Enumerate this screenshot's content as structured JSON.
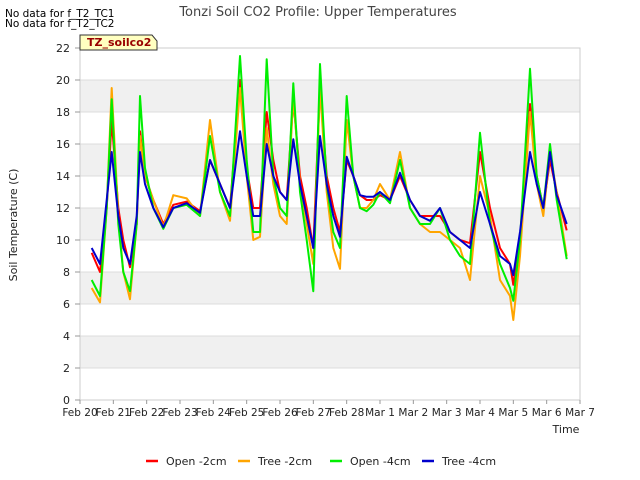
{
  "notices": [
    "No data for f_T2_TC1",
    "No data for f_T2_TC2"
  ],
  "chart_data": {
    "type": "line",
    "title": "Tonzi Soil CO2 Profile: Upper Temperatures",
    "xlabel": "Time",
    "ylabel": "Soil Temperature (C)",
    "site_label": "TZ_soilco2",
    "ylim": [
      0,
      22
    ],
    "xlim": [
      0,
      15
    ],
    "yticks": [
      0,
      2,
      4,
      6,
      8,
      10,
      12,
      14,
      16,
      18,
      20,
      22
    ],
    "xticks": [
      0,
      1,
      2,
      3,
      4,
      5,
      6,
      7,
      8,
      9,
      10,
      11,
      12,
      13,
      14,
      15
    ],
    "xtick_labels": [
      "Feb 20",
      "Feb 21",
      "Feb 22",
      "Feb 23",
      "Feb 24",
      "Feb 25",
      "Feb 26",
      "Feb 27",
      "Feb 28",
      "Mar 1",
      "Mar 2",
      "Mar 3",
      "Mar 4",
      "Mar 5",
      "Mar 6",
      "Mar 7"
    ],
    "grid": true,
    "legend_position": "bottom",
    "series": [
      {
        "name": "Open -2cm",
        "color": "#ff0000",
        "x": [
          0.35,
          0.6,
          0.8,
          0.95,
          1.15,
          1.3,
          1.5,
          1.7,
          1.8,
          1.95,
          2.2,
          2.5,
          2.8,
          3.2,
          3.6,
          3.9,
          4.2,
          4.5,
          4.8,
          5.0,
          5.2,
          5.4,
          5.6,
          5.8,
          6.0,
          6.2,
          6.4,
          6.6,
          6.8,
          7.0,
          7.2,
          7.4,
          7.6,
          7.8,
          8.0,
          8.2,
          8.4,
          8.6,
          8.8,
          9.0,
          9.3,
          9.6,
          9.9,
          10.2,
          10.5,
          10.8,
          11.1,
          11.4,
          11.7,
          12.0,
          12.3,
          12.6,
          12.9,
          13.0,
          13.2,
          13.5,
          13.7,
          13.9,
          14.1,
          14.3,
          14.6
        ],
        "y": [
          9.2,
          8.0,
          12.0,
          17.5,
          12.0,
          10.0,
          8.3,
          11.0,
          16.8,
          14.0,
          12.5,
          11.0,
          12.2,
          12.4,
          11.8,
          15.0,
          13.5,
          12.0,
          20.0,
          14.5,
          12.0,
          12.0,
          18.0,
          15.0,
          13.0,
          12.5,
          18.8,
          14.0,
          12.0,
          9.5,
          19.5,
          14.0,
          12.0,
          10.5,
          15.0,
          14.0,
          12.8,
          12.5,
          12.5,
          12.8,
          12.5,
          14.0,
          12.5,
          11.5,
          11.5,
          11.5,
          10.5,
          10.0,
          9.8,
          15.5,
          12.0,
          9.5,
          8.5,
          7.2,
          10.0,
          18.5,
          14.0,
          12.0,
          15.0,
          13.0,
          10.6
        ]
      },
      {
        "name": "Tree -2cm",
        "color": "#ffa500",
        "x": [
          0.35,
          0.6,
          0.8,
          0.95,
          1.15,
          1.3,
          1.5,
          1.7,
          1.8,
          1.95,
          2.2,
          2.5,
          2.8,
          3.2,
          3.6,
          3.9,
          4.2,
          4.5,
          4.8,
          5.0,
          5.2,
          5.4,
          5.6,
          5.8,
          6.0,
          6.2,
          6.4,
          6.6,
          6.8,
          7.0,
          7.2,
          7.4,
          7.6,
          7.8,
          8.0,
          8.2,
          8.4,
          8.6,
          8.8,
          9.0,
          9.3,
          9.6,
          9.9,
          10.2,
          10.5,
          10.8,
          11.1,
          11.4,
          11.7,
          12.0,
          12.3,
          12.6,
          12.9,
          13.0,
          13.2,
          13.5,
          13.7,
          13.9,
          14.1,
          14.3,
          14.6
        ],
        "y": [
          7.0,
          6.1,
          12.0,
          19.5,
          11.5,
          8.0,
          6.3,
          11.0,
          16.5,
          14.0,
          12.5,
          10.8,
          12.8,
          12.6,
          11.5,
          17.5,
          13.0,
          11.2,
          19.5,
          14.0,
          10.0,
          10.2,
          17.0,
          13.5,
          11.5,
          11.0,
          19.0,
          13.5,
          11.0,
          8.5,
          19.5,
          13.0,
          9.5,
          8.2,
          17.5,
          14.0,
          12.0,
          12.0,
          12.5,
          13.5,
          12.5,
          15.5,
          12.0,
          11.0,
          10.5,
          10.5,
          10.0,
          9.5,
          7.5,
          14.0,
          11.5,
          7.5,
          6.5,
          5.0,
          9.0,
          18.0,
          13.5,
          11.5,
          15.5,
          13.0,
          9.0
        ]
      },
      {
        "name": "Open -4cm",
        "color": "#00ee00",
        "x": [
          0.35,
          0.6,
          0.8,
          0.95,
          1.15,
          1.3,
          1.5,
          1.7,
          1.8,
          1.95,
          2.2,
          2.5,
          2.8,
          3.2,
          3.6,
          3.9,
          4.2,
          4.5,
          4.8,
          5.0,
          5.2,
          5.4,
          5.6,
          5.8,
          6.0,
          6.2,
          6.4,
          6.6,
          6.8,
          7.0,
          7.2,
          7.4,
          7.6,
          7.8,
          8.0,
          8.2,
          8.4,
          8.6,
          8.8,
          9.0,
          9.3,
          9.6,
          9.9,
          10.2,
          10.5,
          10.8,
          11.1,
          11.4,
          11.7,
          12.0,
          12.3,
          12.6,
          12.9,
          13.0,
          13.2,
          13.5,
          13.7,
          13.9,
          14.1,
          14.3,
          14.6
        ],
        "y": [
          7.5,
          6.5,
          12.0,
          18.8,
          11.0,
          8.0,
          6.8,
          11.0,
          19.0,
          14.5,
          12.0,
          10.7,
          12.0,
          12.2,
          11.5,
          16.5,
          13.0,
          11.5,
          21.5,
          15.0,
          10.5,
          10.5,
          21.3,
          14.0,
          12.0,
          11.5,
          19.8,
          13.0,
          10.0,
          6.8,
          21.0,
          13.5,
          10.5,
          9.5,
          19.0,
          14.0,
          12.0,
          11.8,
          12.2,
          13.0,
          12.3,
          15.0,
          12.0,
          11.0,
          11.0,
          12.0,
          10.0,
          9.0,
          8.5,
          16.7,
          11.0,
          8.5,
          7.0,
          6.2,
          10.0,
          20.7,
          14.0,
          12.0,
          16.0,
          12.5,
          8.8
        ]
      },
      {
        "name": "Tree -4cm",
        "color": "#0000cc",
        "x": [
          0.35,
          0.6,
          0.8,
          0.95,
          1.15,
          1.3,
          1.5,
          1.7,
          1.8,
          1.95,
          2.2,
          2.5,
          2.8,
          3.2,
          3.6,
          3.9,
          4.2,
          4.5,
          4.8,
          5.0,
          5.2,
          5.4,
          5.6,
          5.8,
          6.0,
          6.2,
          6.4,
          6.6,
          6.8,
          7.0,
          7.2,
          7.4,
          7.6,
          7.8,
          8.0,
          8.2,
          8.4,
          8.6,
          8.8,
          9.0,
          9.3,
          9.6,
          9.9,
          10.2,
          10.5,
          10.8,
          11.1,
          11.4,
          11.7,
          12.0,
          12.3,
          12.6,
          12.9,
          13.0,
          13.2,
          13.5,
          13.7,
          13.9,
          14.1,
          14.3,
          14.6
        ],
        "y": [
          9.5,
          8.5,
          12.5,
          15.5,
          11.5,
          9.5,
          8.5,
          11.5,
          15.5,
          13.5,
          12.0,
          10.8,
          12.0,
          12.3,
          11.7,
          15.0,
          13.5,
          12.0,
          16.8,
          14.0,
          11.5,
          11.5,
          16.0,
          14.0,
          13.0,
          12.5,
          16.3,
          13.5,
          11.5,
          9.5,
          16.5,
          13.5,
          11.5,
          10.2,
          15.2,
          14.0,
          12.8,
          12.7,
          12.7,
          13.0,
          12.5,
          14.2,
          12.5,
          11.5,
          11.2,
          12.0,
          10.5,
          10.0,
          9.5,
          13.0,
          11.0,
          9.0,
          8.5,
          7.8,
          10.5,
          15.5,
          13.5,
          12.0,
          15.5,
          12.8,
          11.0
        ]
      }
    ]
  }
}
